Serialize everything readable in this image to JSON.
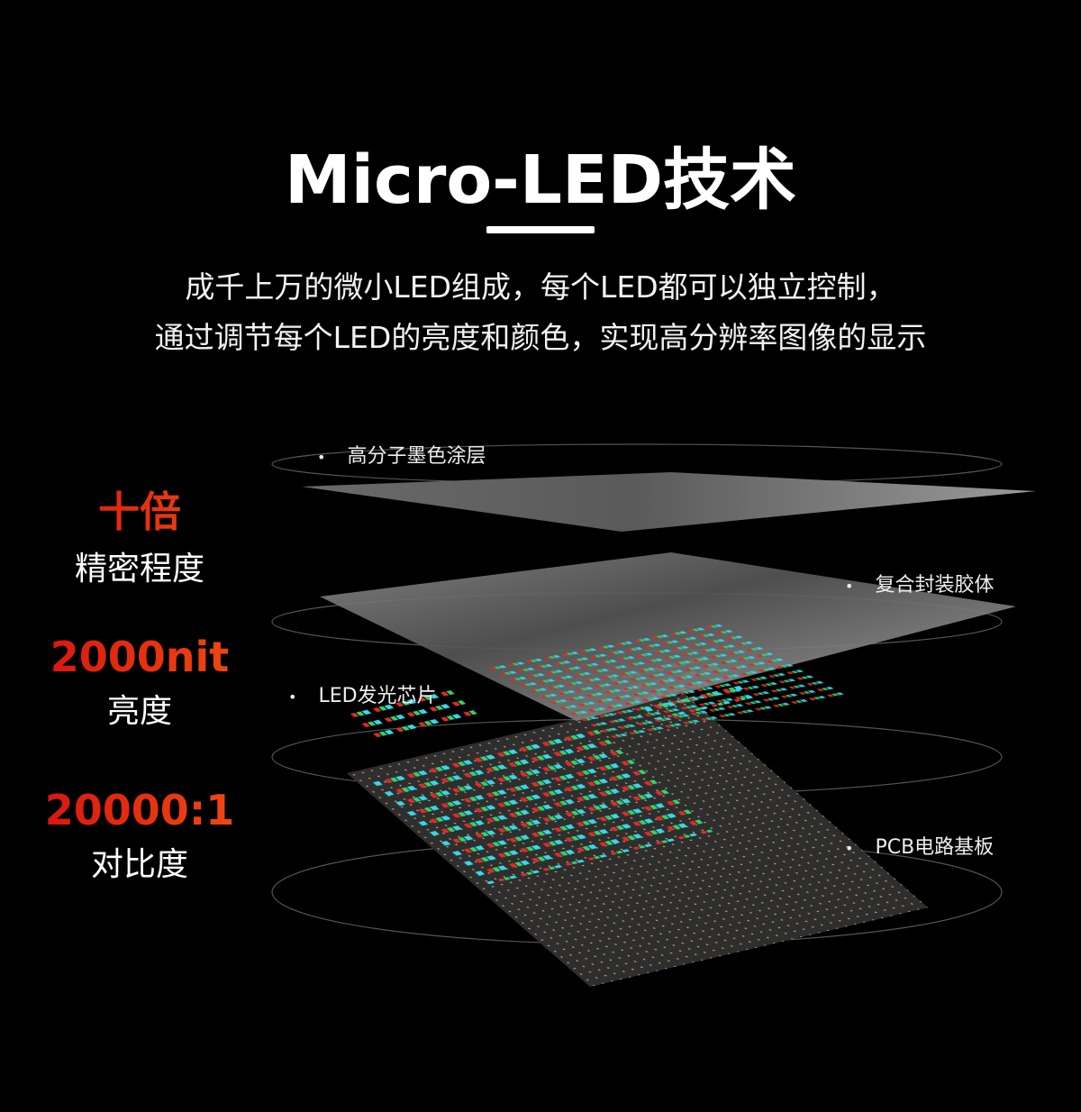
{
  "header": {
    "title": "Micro-LED技术",
    "subtitle_line1": "成千上万的微小LED组成，每个LED都可以独立控制，",
    "subtitle_line2": "通过调节每个LED的亮度和颜色，实现高分辨率图像的显示"
  },
  "stats": [
    {
      "value": "十倍",
      "label": "精密程度"
    },
    {
      "value": "2000nit",
      "label": "亮度"
    },
    {
      "value": "20000:1",
      "label": "对比度"
    }
  ],
  "layers": [
    {
      "label": "高分子墨色涂层"
    },
    {
      "label": "复合封装胶体"
    },
    {
      "label": "LED发光芯片"
    },
    {
      "label": "PCB电路基板"
    }
  ],
  "colors": {
    "accent": "#e02a10",
    "led_red": "#e5282a",
    "led_green": "#2fd36a",
    "led_cyan": "#36d8e8"
  }
}
